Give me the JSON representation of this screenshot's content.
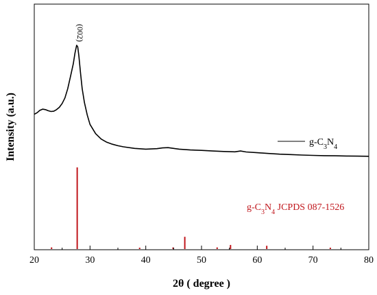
{
  "chart_data": {
    "type": "line",
    "xlabel": "2θ ( degree )",
    "ylabel": "Intensity (a.u.)",
    "xlim": [
      20,
      80
    ],
    "x_ticks": [
      "20",
      "30",
      "40",
      "50",
      "60",
      "70",
      "80"
    ],
    "y_ticks": [],
    "grid": false,
    "series": [
      {
        "name": "g-C3N4",
        "color": "#000000",
        "x": [
          20,
          20.5,
          21,
          21.5,
          22,
          22.5,
          23,
          23.5,
          24,
          24.5,
          25,
          25.5,
          26,
          26.5,
          27,
          27.3,
          27.6,
          27.8,
          28.0,
          28.3,
          28.6,
          29,
          29.5,
          30,
          31,
          32,
          33,
          34,
          35,
          36,
          38,
          40,
          42,
          43,
          44,
          45,
          46,
          48,
          50,
          52,
          54,
          56,
          57,
          58,
          60,
          62,
          64,
          66,
          68,
          70,
          72,
          74,
          76,
          78,
          80
        ],
        "y": [
          0.555,
          0.565,
          0.58,
          0.588,
          0.585,
          0.578,
          0.573,
          0.575,
          0.585,
          0.6,
          0.625,
          0.66,
          0.72,
          0.8,
          0.88,
          0.95,
          1.0,
          0.99,
          0.93,
          0.82,
          0.72,
          0.63,
          0.55,
          0.49,
          0.43,
          0.395,
          0.375,
          0.362,
          0.352,
          0.345,
          0.335,
          0.33,
          0.333,
          0.338,
          0.34,
          0.335,
          0.33,
          0.325,
          0.322,
          0.318,
          0.315,
          0.313,
          0.318,
          0.312,
          0.307,
          0.302,
          0.298,
          0.295,
          0.292,
          0.29,
          0.288,
          0.287,
          0.286,
          0.285,
          0.284
        ]
      }
    ],
    "reference_sticks": {
      "name": "g-C3N4 JCPDS 087-1526",
      "color": "#c0151b",
      "positions": [
        23.1,
        27.7,
        38.9,
        44.9,
        47.0,
        52.8,
        55.2,
        61.7,
        73.1
      ],
      "relative_intensities": [
        0.02,
        1.0,
        0.01,
        0.02,
        0.15,
        0.02,
        0.05,
        0.04,
        0.01
      ]
    },
    "annotations": [
      "(002)"
    ],
    "legend_position": "right",
    "reference_label_position": "lower-right"
  }
}
